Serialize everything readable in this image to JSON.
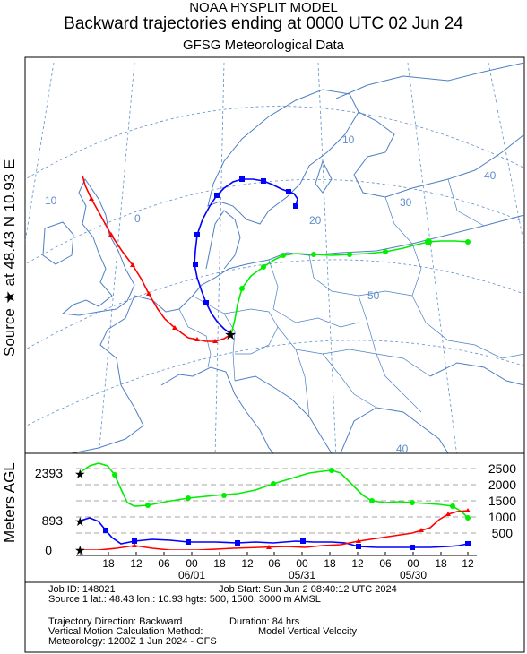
{
  "header": {
    "line1": "NOAA HYSPLIT MODEL",
    "line2": "Backward trajectories ending at 0000 UTC 02 Jun 24",
    "line3": "GFSG Meteorological Data"
  },
  "map": {
    "side_label": "Source ★ at   48.43 N   10.93 E",
    "grid_labels": [
      "10",
      "0",
      "10",
      "20",
      "30",
      "40",
      "50",
      "40"
    ],
    "colors": {
      "land_border": "#4d7fc4",
      "grid": "#5f8fc9",
      "traj1": "#ff0000",
      "traj2": "#0000ff",
      "traj3": "#00ee00"
    }
  },
  "height_panel": {
    "ylabel": "Meters AGL",
    "left_ticks": [
      "2393",
      "893",
      "0"
    ],
    "right_ticks": [
      "2500",
      "2000",
      "1500",
      "1000",
      "500"
    ],
    "time_ticks": [
      "18",
      "12",
      "06",
      "00",
      "18",
      "12",
      "06",
      "00",
      "18",
      "12",
      "06",
      "00",
      "18",
      "12"
    ],
    "date_labels": [
      "06/01",
      "05/31",
      "05/30"
    ]
  },
  "info": {
    "job_id": "Job ID: 148021",
    "job_start": "Job Start: Sun Jun  2 08:40:12 UTC 2024",
    "source": "Source 1 lat.: 48.43  lon.: 10.93  hgts: 500, 1500, 3000 m AMSL",
    "direction": "Trajectory Direction: Backward",
    "duration": "Duration: 84 hrs",
    "vertical": "Vertical Motion Calculation Method:",
    "vertical_value": "Model Vertical Velocity",
    "meteorology": "Meteorology: 1200Z 1 Jun 2024 - GFS"
  }
}
